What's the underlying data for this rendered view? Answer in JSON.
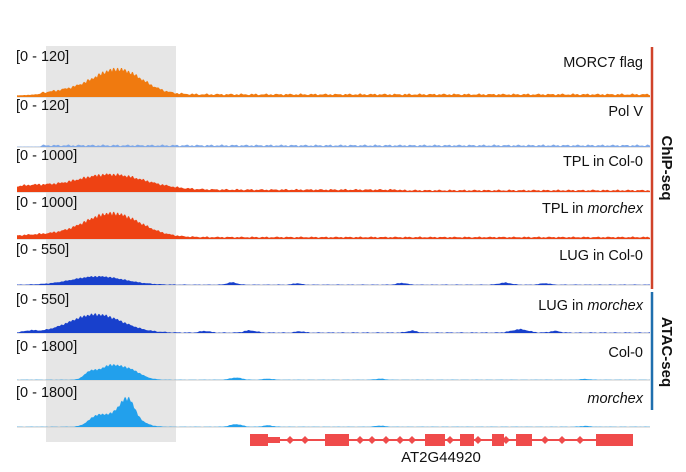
{
  "tracks": [
    {
      "range": "[0 - 120]",
      "name": "MORC7 flag",
      "italic": "",
      "color": "#f07a0f",
      "profile": "morc7"
    },
    {
      "range": "[0 - 120]",
      "name": "Pol V",
      "italic": "",
      "color": "#7fa8e8",
      "profile": "polv"
    },
    {
      "range": "[0 - 1000]",
      "name": "TPL in Col-0",
      "italic": "",
      "color": "#ee4213",
      "profile": "tpl"
    },
    {
      "range": "[0 - 1000]",
      "name": "TPL in ",
      "italic": "morchex",
      "color": "#ee4213",
      "profile": "tpl2"
    },
    {
      "range": "[0 - 550]",
      "name": "LUG in Col-0",
      "italic": "",
      "color": "#1840cc",
      "profile": "lug"
    },
    {
      "range": "[0 - 550]",
      "name": "LUG in ",
      "italic": "morchex",
      "color": "#1840cc",
      "profile": "lug2"
    },
    {
      "range": "[0 - 1800]",
      "name": "Col-0",
      "italic": "",
      "color": "#22a0ec",
      "profile": "atac"
    },
    {
      "range": "[0 - 1800]",
      "name": "",
      "italic": "morchex",
      "color": "#22a0ec",
      "profile": "atac2"
    }
  ],
  "groups": [
    {
      "label": "ChIP-seq",
      "color": "#d0432a"
    },
    {
      "label": "ATAC-seq",
      "color": "#1f6fae"
    }
  ],
  "gene": {
    "name": "AT2G44920",
    "color": "#ef4b4b"
  },
  "highlight_color": "#e6e6e6"
}
